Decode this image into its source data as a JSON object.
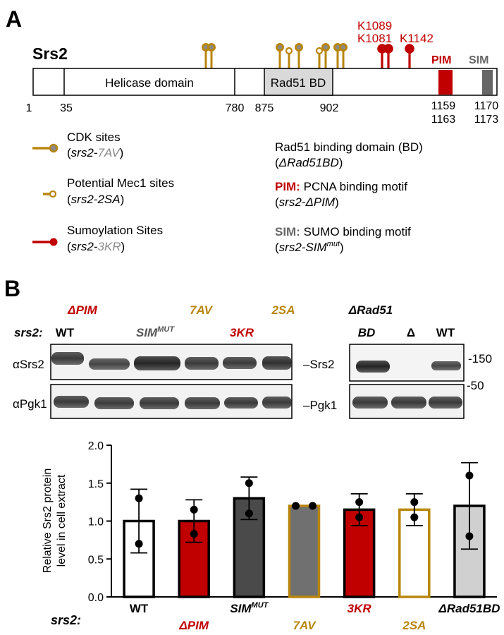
{
  "panel_a": {
    "letter": "A",
    "protein": "Srs2",
    "domains": {
      "helicase": "Helicase domain",
      "rad51bd": "Rad51 BD",
      "pim": "PIM",
      "sim": "SIM"
    },
    "positions": {
      "p1": "1",
      "p35": "35",
      "p780": "780",
      "p875": "875",
      "p902": "902",
      "p1159": "1159",
      "p1163": "1163",
      "p1170": "1170",
      "p1173": "1173"
    },
    "sumo_sites": {
      "k1089": "K1089",
      "k1081": "K1081",
      "k1142": "K1142"
    },
    "legend": {
      "cdk": {
        "title": "CDK sites",
        "mut_prefix": "srs2-",
        "mut_suffix": "7AV"
      },
      "mec1": {
        "title": "Potential Mec1 sites",
        "mut_prefix": "srs2-",
        "mut_suffix": "2SA"
      },
      "sumo": {
        "title": "Sumoylation Sites",
        "mut_prefix": "srs2-",
        "mut_suffix": "3KR"
      },
      "rad51": {
        "title": "Rad51 binding domain (BD)",
        "mut": "ΔRad51BD"
      },
      "pim": {
        "key": "PIM:",
        "title": " PCNA binding motif",
        "mut": "srs2-ΔPIM"
      },
      "sim": {
        "key": "SIM:",
        "title": " SUMO binding motif",
        "mut_prefix": "srs2-SIM",
        "mut_sup": "mut"
      }
    }
  },
  "panel_b": {
    "letter": "B",
    "blot": {
      "srs2_label": "srs2:",
      "lanes_top": [
        "ΔPIM",
        "7AV",
        "2SA"
      ],
      "lanes_bottom": [
        "WT",
        "SIM",
        "3KR"
      ],
      "sim_sup": "MUT",
      "rad51_lane": [
        "ΔRad51",
        "BD"
      ],
      "delta": "Δ",
      "wt2": "WT",
      "row1": "αSrs2",
      "row2": "αPgk1",
      "band1": "Srs2",
      "band2": "Pgk1",
      "marker150": "150",
      "marker50": "50"
    },
    "colors": {
      "red": "#c00000",
      "gold": "#b8860b",
      "gray": "#555555"
    }
  },
  "chart_data": {
    "type": "bar",
    "categories": [
      "WT",
      "ΔPIM",
      "SIM",
      "7AV",
      "3KR",
      "2SA",
      "ΔRad51BD"
    ],
    "category_sup": [
      "",
      "",
      "MUT",
      "",
      "",
      "",
      ""
    ],
    "values": [
      1.0,
      1.0,
      1.3,
      1.2,
      1.15,
      1.15,
      1.2
    ],
    "error": [
      0.42,
      0.28,
      0.28,
      0.0,
      0.21,
      0.21,
      0.57
    ],
    "points": [
      [
        1.3,
        0.7
      ],
      [
        1.15,
        0.83
      ],
      [
        1.5,
        1.1
      ],
      [
        1.2,
        1.2
      ],
      [
        1.25,
        1.05
      ],
      [
        1.25,
        1.05
      ],
      [
        1.6,
        0.8
      ]
    ],
    "ylabel_lines": [
      "Relative Srs2 protein",
      "level in cell extract"
    ],
    "xlabel": "srs2:",
    "ylim": [
      0,
      2
    ],
    "yticks": [
      "0.0",
      "0.5",
      "1.0",
      "1.5",
      "2.0"
    ],
    "bar_fill": [
      "#ffffff",
      "#c00000",
      "#4a4a4a",
      "#707070",
      "#c00000",
      "#ffffff",
      "#d0d0d0"
    ],
    "bar_stroke": [
      "#000000",
      "#000000",
      "#000000",
      "#b8860b",
      "#000000",
      "#b8860b",
      "#000000"
    ],
    "label_color": [
      "#000000",
      "#c00000",
      "#000000",
      "#b8860b",
      "#c00000",
      "#b8860b",
      "#000000"
    ]
  }
}
